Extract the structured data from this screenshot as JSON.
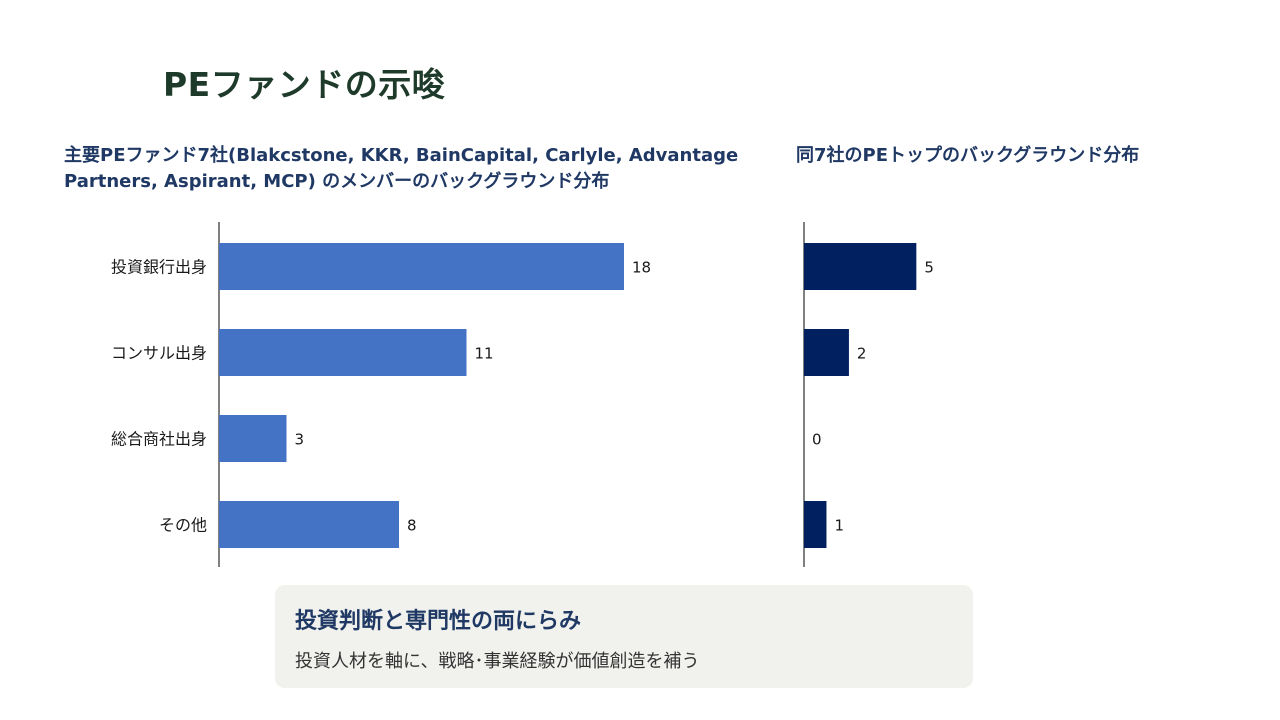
{
  "page_title": "PEファンドの示唆",
  "colors": {
    "series1": "#4472c4",
    "series2": "#002060",
    "axis": "#000000",
    "label": "#1a1a1a"
  },
  "chart_data": [
    {
      "type": "bar",
      "orientation": "horizontal",
      "title": "主要PEファンド7社(Blakcstone, KKR, BainCapital, Carlyle, Advantage Partners, Aspirant, MCP) のメンバーのバックグラウンド分布",
      "categories": [
        "投資銀行出身",
        "コンサル出身",
        "総合商社出身",
        "その他"
      ],
      "values": [
        18,
        11,
        3,
        8
      ],
      "xlim": [
        0,
        30
      ],
      "grid": false,
      "data_labels": true
    },
    {
      "type": "bar",
      "orientation": "horizontal",
      "title": "同7社のPEトップのバックグラウンド分布",
      "categories": [
        "投資銀行出身",
        "コンサル出身",
        "総合商社出身",
        "その他"
      ],
      "values": [
        5,
        2,
        0,
        1
      ],
      "xlim": [
        0,
        15
      ],
      "grid": false,
      "data_labels": true
    }
  ],
  "callout": {
    "heading": "投資判断と専門性の両にらみ",
    "body": "投資人材を軸に、戦略･事業経験が価値創造を補う"
  }
}
